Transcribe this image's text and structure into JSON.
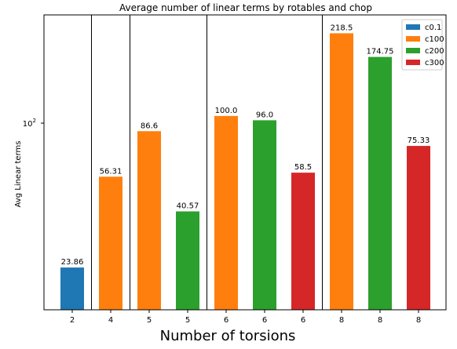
{
  "chart_data": {
    "type": "bar",
    "title": "Average number of linear terms by rotables and chop",
    "xlabel": "Number of torsions",
    "ylabel": "Avg Linear terms",
    "yscale": "log",
    "ylim": [
      16,
      260
    ],
    "ytick_label": "10",
    "ytick_exponent": "2",
    "grid": false,
    "legend_position": "top-right",
    "series": [
      {
        "name": "c0.1",
        "color": "#1f77b4"
      },
      {
        "name": "c100",
        "color": "#ff7f0e"
      },
      {
        "name": "c200",
        "color": "#2ca02c"
      },
      {
        "name": "c300",
        "color": "#d62728"
      }
    ],
    "bars": [
      {
        "tick": "2",
        "series": "c0.1",
        "value": 23.86,
        "label": "23.86"
      },
      {
        "tick": "4",
        "series": "c100",
        "value": 56.31,
        "label": "56.31"
      },
      {
        "tick": "5",
        "series": "c100",
        "value": 86.6,
        "label": "86.6"
      },
      {
        "tick": "5",
        "series": "c200",
        "value": 40.57,
        "label": "40.57"
      },
      {
        "tick": "6",
        "series": "c100",
        "value": 100.0,
        "label": "100.0"
      },
      {
        "tick": "6",
        "series": "c200",
        "value": 96.0,
        "label": "96.0"
      },
      {
        "tick": "6",
        "series": "c300",
        "value": 58.5,
        "label": "58.5"
      },
      {
        "tick": "8",
        "series": "c100",
        "value": 218.5,
        "label": "218.5"
      },
      {
        "tick": "8",
        "series": "c200",
        "value": 174.75,
        "label": "174.75"
      },
      {
        "tick": "8",
        "series": "c300",
        "value": 75.33,
        "label": "75.33"
      }
    ],
    "group_separators_after_bar": [
      0,
      1,
      3,
      6
    ]
  }
}
